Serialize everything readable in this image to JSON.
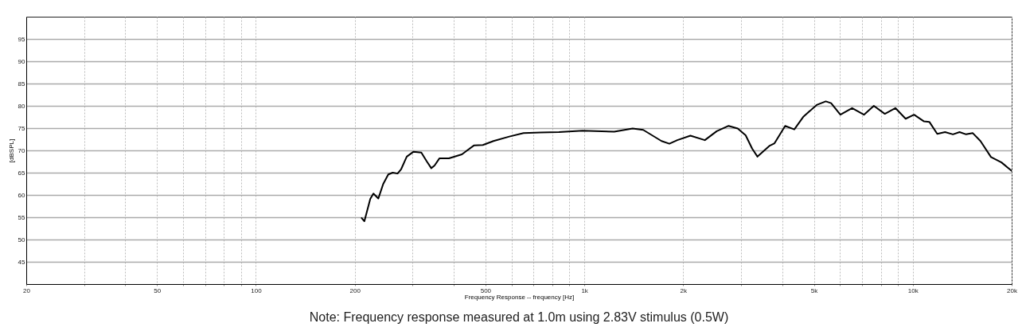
{
  "chart_data": {
    "type": "line",
    "xlabel": "Frequency Response -- frequency [Hz]",
    "ylabel": "[dBSPL]",
    "log": "x",
    "grid": true,
    "line_style": "solid",
    "annotations": [
      "Note: Frequency response measured at 1.0m using 2.83V stimulus (0.5W)"
    ],
    "xlim": [
      20,
      20000
    ],
    "ylim": [
      40,
      100
    ],
    "xticks": [
      20,
      {
        "value": 30,
        "label": null
      },
      {
        "value": 40,
        "label": null
      },
      50,
      {
        "value": 60,
        "label": null
      },
      {
        "value": 70,
        "label": null
      },
      {
        "value": 80,
        "label": null
      },
      {
        "value": 90,
        "label": null
      },
      100,
      200,
      {
        "value": 300,
        "label": null
      },
      {
        "value": 400,
        "label": null
      },
      500,
      {
        "value": 600,
        "label": null
      },
      {
        "value": 700,
        "label": null
      },
      {
        "value": 800,
        "label": null
      },
      {
        "value": 900,
        "label": null
      },
      {
        "value": 1000,
        "label": "1k"
      },
      {
        "value": 2000,
        "label": "2k"
      },
      {
        "value": 3000,
        "label": null
      },
      {
        "value": 4000,
        "label": null
      },
      {
        "value": 5000,
        "label": "5k"
      },
      {
        "value": 6000,
        "label": null
      },
      {
        "value": 7000,
        "label": null
      },
      {
        "value": 8000,
        "label": null
      },
      {
        "value": 9000,
        "label": null
      },
      {
        "value": 10000,
        "label": "10k"
      },
      {
        "value": 20000,
        "label": "20k"
      }
    ],
    "yticks": [
      45,
      50,
      55,
      60,
      65,
      70,
      75,
      80,
      85,
      90,
      95
    ],
    "series": [
      {
        "color": "#000000",
        "x": [
          210,
          214,
          223,
          228,
          236,
          244,
          253,
          261,
          270,
          277,
          288,
          302,
          319,
          331,
          342,
          350,
          362,
          387,
          424,
          440,
          461,
          491,
          529,
          591,
          653,
          736,
          837,
          988,
          1233,
          1403,
          1511,
          1718,
          1815,
          1919,
          2104,
          2328,
          2530,
          2749,
          2931,
          3098,
          3243,
          3366,
          3657,
          3794,
          4087,
          4358,
          4650,
          5097,
          5434,
          5640,
          6019,
          6535,
          7100,
          7610,
          8220,
          8850,
          9510,
          10090,
          10820,
          11230,
          11870,
          12540,
          13250,
          13880,
          14530,
          15210,
          16070,
          17300,
          18620,
          20000
        ],
        "values": [
          54.8,
          54.1,
          59.1,
          60.3,
          59.2,
          62.4,
          64.6,
          65.0,
          64.8,
          65.8,
          68.6,
          69.7,
          69.5,
          67.6,
          66.0,
          66.6,
          68.2,
          68.2,
          69.1,
          70.0,
          71.1,
          71.2,
          72.1,
          73.1,
          73.9,
          74.0,
          74.1,
          74.4,
          74.2,
          74.9,
          74.6,
          72.1,
          71.5,
          72.3,
          73.3,
          72.3,
          74.3,
          75.5,
          74.9,
          73.4,
          70.4,
          68.6,
          71.0,
          71.6,
          75.5,
          74.7,
          77.6,
          80.2,
          81.0,
          80.6,
          78.0,
          79.5,
          78.0,
          80.0,
          78.2,
          79.5,
          77.1,
          78.0,
          76.5,
          76.4,
          73.7,
          74.1,
          73.6,
          74.1,
          73.6,
          73.9,
          72.1,
          68.5,
          67.3,
          65.4
        ]
      }
    ]
  }
}
